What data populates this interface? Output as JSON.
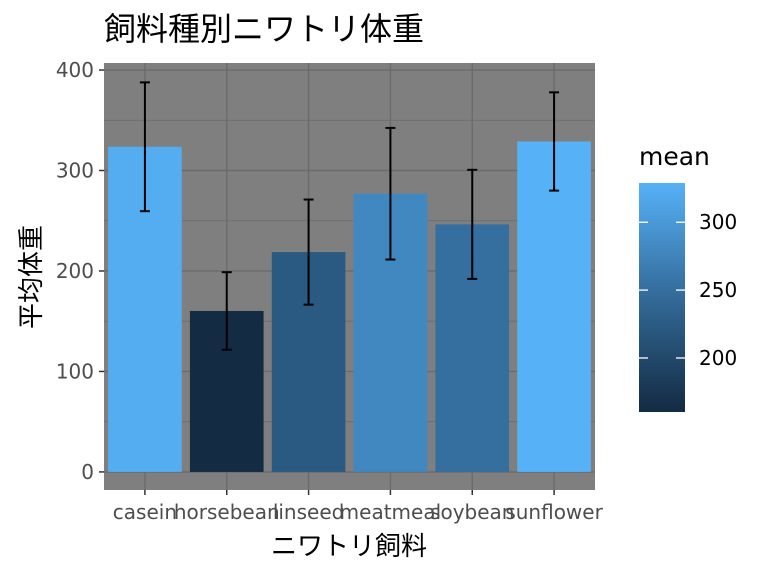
{
  "chart_data": {
    "type": "bar",
    "title": "飼料種別ニワトリ体重",
    "xlabel": "ニワトリ飼料",
    "ylabel": "平均体重",
    "categories": [
      "casein",
      "horsebean",
      "linseed",
      "meatmeal",
      "soybean",
      "sunflower"
    ],
    "values": [
      323.6,
      160.2,
      218.8,
      276.9,
      246.4,
      328.9
    ],
    "error_low": [
      259.5,
      121.6,
      166.5,
      211.4,
      192.1,
      280.0
    ],
    "error_high": [
      387.7,
      198.8,
      271.1,
      342.4,
      300.7,
      377.8
    ],
    "ylim": [
      -18,
      407
    ],
    "yticks": [
      0,
      100,
      200,
      300,
      400
    ],
    "grid": true,
    "panel_background": "#7f7f7f",
    "gridline_color": "#6b6b6b",
    "legend": {
      "title": "mean",
      "position": "right",
      "ticks": [
        200,
        250,
        300
      ],
      "range": [
        160.2,
        328.9
      ],
      "color_low": "#132B43",
      "color_high": "#56B1F7"
    }
  }
}
